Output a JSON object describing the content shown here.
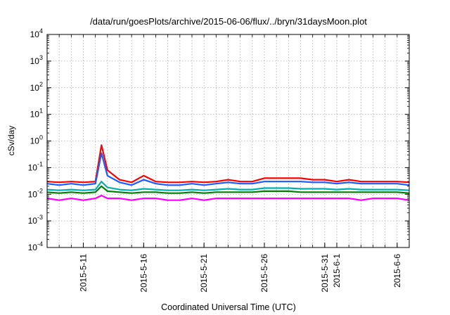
{
  "chart_data": {
    "type": "line",
    "title": "/data/run/goesPlots/archive/2015-06-06/flux/../bryn/31daysMoon.plot",
    "xlabel": "Coordinated Universal Time (UTC)",
    "ylabel": "cSv/day",
    "y_scale": "log",
    "ylim": [
      0.0001,
      10000
    ],
    "y_ticks": [
      {
        "base": "10",
        "exp": "-4",
        "value": 0.0001
      },
      {
        "base": "10",
        "exp": "-3",
        "value": 0.001
      },
      {
        "base": "10",
        "exp": "-2",
        "value": 0.01
      },
      {
        "base": "10",
        "exp": "-1",
        "value": 0.1
      },
      {
        "base": "10",
        "exp": "0",
        "value": 1
      },
      {
        "base": "10",
        "exp": "1",
        "value": 10
      },
      {
        "base": "10",
        "exp": "2",
        "value": 100
      },
      {
        "base": "10",
        "exp": "3",
        "value": 1000
      },
      {
        "base": "10",
        "exp": "4",
        "value": 10000
      }
    ],
    "xlim": [
      "2015-05-08",
      "2015-06-07"
    ],
    "x_ticks": [
      {
        "label": "2015-5-11",
        "date": "2015-05-11"
      },
      {
        "label": "2015-5-16",
        "date": "2015-05-16"
      },
      {
        "label": "2015-5-21",
        "date": "2015-05-21"
      },
      {
        "label": "2015-5-26",
        "date": "2015-05-26"
      },
      {
        "label": "2015-5-31",
        "date": "2015-05-31"
      },
      {
        "label": "2015-6-1",
        "date": "2015-06-01"
      },
      {
        "label": "2015-6-6",
        "date": "2015-06-06"
      }
    ],
    "grid": true,
    "grid_color": "#aaaaaa",
    "x": [
      "2015-05-08",
      "2015-05-09",
      "2015-05-10",
      "2015-05-11",
      "2015-05-12",
      "2015-05-12T12:00",
      "2015-05-13",
      "2015-05-14",
      "2015-05-15",
      "2015-05-16",
      "2015-05-17",
      "2015-05-18",
      "2015-05-19",
      "2015-05-20",
      "2015-05-21",
      "2015-05-22",
      "2015-05-23",
      "2015-05-24",
      "2015-05-25",
      "2015-05-26",
      "2015-05-27",
      "2015-05-28",
      "2015-05-29",
      "2015-05-30",
      "2015-05-31",
      "2015-06-01",
      "2015-06-02",
      "2015-06-03",
      "2015-06-04",
      "2015-06-05",
      "2015-06-06",
      "2015-06-07"
    ],
    "series": [
      {
        "color": "#ff0000",
        "values": [
          0.03,
          0.028,
          0.03,
          0.028,
          0.03,
          0.7,
          0.08,
          0.035,
          0.028,
          0.05,
          0.03,
          0.028,
          0.028,
          0.03,
          0.028,
          0.03,
          0.035,
          0.03,
          0.03,
          0.04,
          0.04,
          0.04,
          0.04,
          0.035,
          0.035,
          0.03,
          0.035,
          0.03,
          0.03,
          0.03,
          0.03,
          0.028
        ]
      },
      {
        "color": "#1a5cff",
        "values": [
          0.025,
          0.022,
          0.025,
          0.022,
          0.025,
          0.35,
          0.05,
          0.028,
          0.022,
          0.035,
          0.025,
          0.022,
          0.022,
          0.025,
          0.022,
          0.025,
          0.028,
          0.025,
          0.025,
          0.03,
          0.03,
          0.03,
          0.03,
          0.028,
          0.028,
          0.025,
          0.028,
          0.025,
          0.025,
          0.025,
          0.025,
          0.022
        ]
      },
      {
        "color": "#00b0b0",
        "values": [
          0.015,
          0.014,
          0.015,
          0.014,
          0.015,
          0.03,
          0.018,
          0.015,
          0.014,
          0.016,
          0.015,
          0.014,
          0.014,
          0.015,
          0.014,
          0.015,
          0.016,
          0.015,
          0.015,
          0.017,
          0.017,
          0.017,
          0.016,
          0.016,
          0.016,
          0.015,
          0.016,
          0.015,
          0.015,
          0.015,
          0.015,
          0.014
        ]
      },
      {
        "color": "#008000",
        "values": [
          0.012,
          0.011,
          0.012,
          0.011,
          0.012,
          0.02,
          0.013,
          0.012,
          0.011,
          0.012,
          0.012,
          0.011,
          0.011,
          0.012,
          0.011,
          0.012,
          0.012,
          0.012,
          0.012,
          0.013,
          0.013,
          0.013,
          0.012,
          0.012,
          0.012,
          0.012,
          0.012,
          0.012,
          0.012,
          0.012,
          0.012,
          0.011
        ]
      },
      {
        "color": "#ff00ff",
        "values": [
          0.007,
          0.006,
          0.007,
          0.006,
          0.007,
          0.009,
          0.007,
          0.007,
          0.006,
          0.007,
          0.007,
          0.006,
          0.006,
          0.007,
          0.006,
          0.007,
          0.007,
          0.007,
          0.007,
          0.007,
          0.007,
          0.007,
          0.007,
          0.007,
          0.007,
          0.007,
          0.007,
          0.006,
          0.007,
          0.007,
          0.007,
          0.006
        ]
      }
    ]
  }
}
